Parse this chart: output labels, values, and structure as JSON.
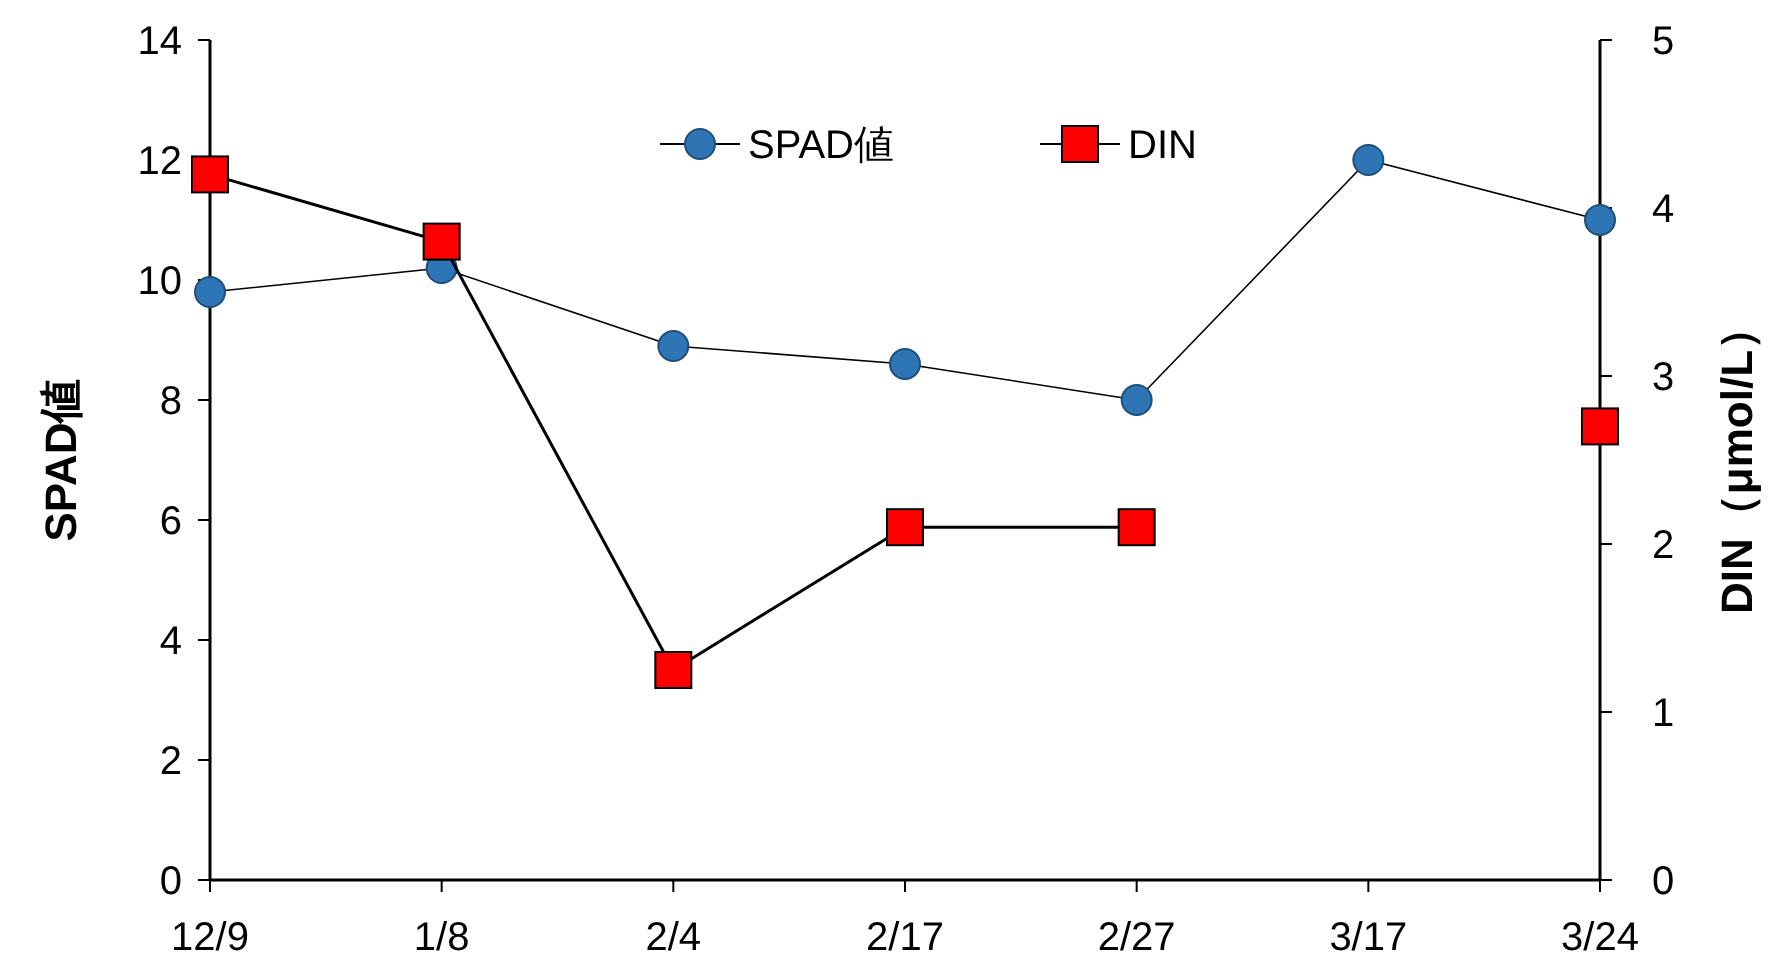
{
  "chart_data": {
    "type": "line",
    "categories": [
      "12/9",
      "1/8",
      "2/4",
      "2/17",
      "2/27",
      "3/17",
      "3/24"
    ],
    "ylabel": "SPAD値",
    "y2label": "DIN（μmol/L）",
    "ylim": [
      0,
      14
    ],
    "yticks": [
      0,
      2,
      4,
      6,
      8,
      10,
      12,
      14
    ],
    "y2lim": [
      0,
      5
    ],
    "y2ticks": [
      0,
      1,
      2,
      3,
      4,
      5
    ],
    "grid": false,
    "legend": "top",
    "series": [
      {
        "name": "SPAD値",
        "color": "#2e75b6",
        "marker": "circle",
        "values": [
          9.8,
          10.2,
          8.9,
          8.6,
          8.0,
          12.0,
          11.0
        ]
      },
      {
        "name": "DIN",
        "color": "#ff0000",
        "marker": "square",
        "axis": "y2",
        "values": [
          4.2,
          3.8,
          1.25,
          2.1,
          2.1,
          null,
          2.7
        ]
      }
    ]
  }
}
